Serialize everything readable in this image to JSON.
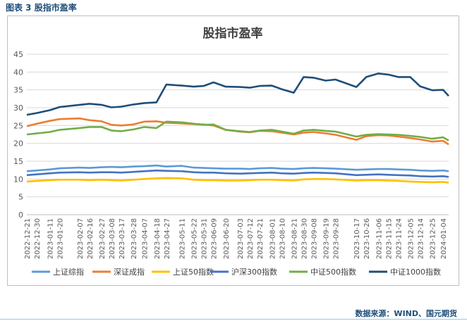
{
  "figure_caption": "图表 3 股指市盈率",
  "source_note": "数据来源：WIND、国元期货",
  "chart_data": {
    "type": "line",
    "title": "股指市盈率",
    "xlabel": "",
    "ylabel": "",
    "ylim": [
      0,
      45
    ],
    "yticks": [
      0,
      5,
      10,
      15,
      20,
      25,
      30,
      35,
      40,
      45
    ],
    "grid": "horizontal",
    "legend_position": "bottom",
    "xticks": [
      "2022-12-21",
      "2022-12-30",
      "2023-01-11",
      "2023-01-20",
      "2023-02-07",
      "2023-02-16",
      "2023-02-27",
      "2023-03-08",
      "2023-03-17",
      "2023-03-28",
      "2023-04-07",
      "2023-04-18",
      "2023-04-27",
      "2023-05-11",
      "2023-05-22",
      "2023-05-31",
      "2023-06-09",
      "2023-06-20",
      "2023-07-03",
      "2023-07-12",
      "2023-07-21",
      "2023-08-01",
      "2023-08-10",
      "2023-08-21",
      "2023-08-30",
      "2023-09-08",
      "2023-09-19",
      "2023-09-28",
      "2023-10-17",
      "2023-10-26",
      "2023-11-06",
      "2023-11-15",
      "2023-11-24",
      "2023-12-05",
      "2023-12-14",
      "2023-12-25",
      "2024-01-04"
    ],
    "x": [
      "2022-12-21",
      "2022-12-30",
      "2023-01-11",
      "2023-01-20",
      "2023-02-07",
      "2023-02-16",
      "2023-02-27",
      "2023-03-08",
      "2023-03-17",
      "2023-03-28",
      "2023-04-07",
      "2023-04-18",
      "2023-04-27",
      "2023-05-11",
      "2023-05-22",
      "2023-05-31",
      "2023-06-09",
      "2023-06-20",
      "2023-07-03",
      "2023-07-12",
      "2023-07-21",
      "2023-08-01",
      "2023-08-10",
      "2023-08-21",
      "2023-08-30",
      "2023-09-08",
      "2023-09-19",
      "2023-09-28",
      "2023-10-17",
      "2023-10-26",
      "2023-11-06",
      "2023-11-15",
      "2023-11-24",
      "2023-12-05",
      "2023-12-14",
      "2023-12-25",
      "2024-01-04",
      "2024-01-09"
    ],
    "series": [
      {
        "name": "上证综指",
        "color": "#5b9bd5",
        "values": [
          12.2,
          12.4,
          12.7,
          13.0,
          13.2,
          13.1,
          13.3,
          13.4,
          13.3,
          13.5,
          13.6,
          13.8,
          13.5,
          13.7,
          13.2,
          13.1,
          13.0,
          12.9,
          12.9,
          12.8,
          13.0,
          13.1,
          12.9,
          12.8,
          13.0,
          13.1,
          13.0,
          12.9,
          12.6,
          12.7,
          12.8,
          12.8,
          12.7,
          12.6,
          12.4,
          12.3,
          12.4,
          12.2
        ]
      },
      {
        "name": "深证成指",
        "color": "#ed7d31",
        "values": [
          24.8,
          25.5,
          26.3,
          26.8,
          27.0,
          26.5,
          26.2,
          25.2,
          25.0,
          25.3,
          26.1,
          26.2,
          25.8,
          25.6,
          25.4,
          25.3,
          25.0,
          23.8,
          23.3,
          23.1,
          23.5,
          23.4,
          23.0,
          22.5,
          23.0,
          23.2,
          22.8,
          22.4,
          21.0,
          22.0,
          22.3,
          22.2,
          21.9,
          21.5,
          21.1,
          20.5,
          20.7,
          19.7
        ]
      },
      {
        "name": "上证50指数",
        "color": "#ffc000",
        "values": [
          9.3,
          9.5,
          9.7,
          9.8,
          9.8,
          9.7,
          9.8,
          9.7,
          9.6,
          9.8,
          10.0,
          10.2,
          10.3,
          10.2,
          9.8,
          9.7,
          9.7,
          9.6,
          9.6,
          9.7,
          9.8,
          9.8,
          9.7,
          9.6,
          9.9,
          10.0,
          10.0,
          9.9,
          9.6,
          9.7,
          9.7,
          9.6,
          9.5,
          9.3,
          9.2,
          9.1,
          9.2,
          9.0
        ]
      },
      {
        "name": "沪深300指数",
        "color": "#4472c4",
        "values": [
          11.1,
          11.3,
          11.6,
          11.8,
          11.9,
          11.8,
          11.9,
          11.9,
          11.8,
          12.0,
          12.2,
          12.4,
          12.3,
          12.2,
          11.9,
          11.8,
          11.8,
          11.6,
          11.5,
          11.6,
          11.7,
          11.8,
          11.6,
          11.5,
          11.7,
          11.8,
          11.7,
          11.6,
          11.1,
          11.2,
          11.3,
          11.2,
          11.1,
          11.0,
          10.8,
          10.7,
          10.8,
          10.6
        ]
      },
      {
        "name": "中证500指数",
        "color": "#70ad47",
        "values": [
          22.5,
          22.8,
          23.2,
          23.8,
          24.3,
          24.6,
          24.6,
          23.6,
          23.4,
          23.9,
          24.6,
          24.3,
          26.1,
          25.9,
          25.5,
          25.2,
          25.3,
          23.8,
          23.4,
          23.2,
          23.6,
          23.8,
          23.3,
          22.7,
          23.6,
          23.8,
          23.5,
          23.3,
          21.9,
          22.4,
          22.6,
          22.5,
          22.4,
          22.1,
          21.8,
          21.3,
          21.7,
          20.8
        ]
      },
      {
        "name": "中证1000指数",
        "color": "#1f4e79",
        "values": [
          28.0,
          28.5,
          29.3,
          30.2,
          30.8,
          31.1,
          30.8,
          30.1,
          30.3,
          30.9,
          31.3,
          31.5,
          36.5,
          36.2,
          35.9,
          36.1,
          37.1,
          35.9,
          35.8,
          35.6,
          36.1,
          36.2,
          35.2,
          34.2,
          38.6,
          38.4,
          37.6,
          37.9,
          35.8,
          38.6,
          39.6,
          39.3,
          38.6,
          38.6,
          36.0,
          34.9,
          35.0,
          33.3
        ]
      }
    ]
  }
}
